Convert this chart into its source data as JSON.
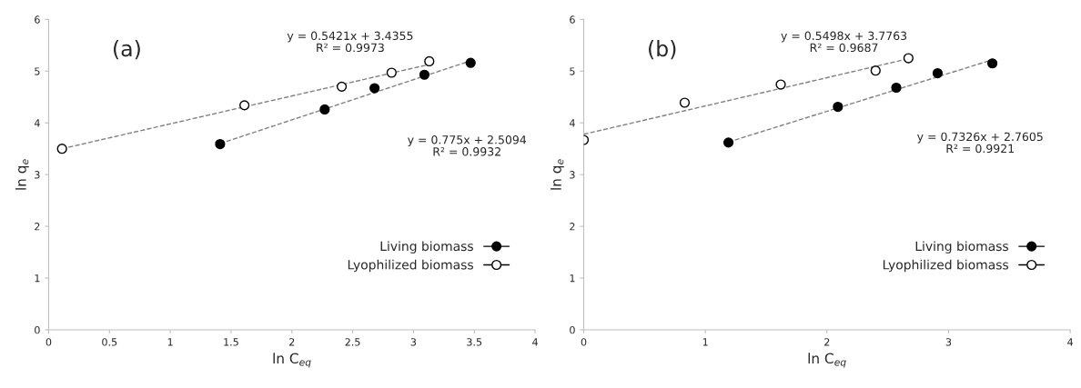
{
  "chart_data": [
    {
      "type": "scatter",
      "title": "(a)",
      "xlabel": "ln C$_{eq}$",
      "ylabel": "ln q$_{e}$",
      "xlim": [
        0,
        4
      ],
      "ylim": [
        0,
        6
      ],
      "xticks": [
        0,
        0.5,
        1,
        1.5,
        2,
        2.5,
        3,
        3.5,
        4
      ],
      "yticks": [
        0,
        1,
        2,
        3,
        4,
        5,
        6
      ],
      "grid": false,
      "legend": "bottom right",
      "marker": "circle",
      "series": [
        {
          "name": "Living biomass",
          "color": "#000000",
          "x": [
            1.41,
            2.27,
            2.68,
            3.09,
            3.47
          ],
          "values": [
            3.59,
            4.26,
            4.67,
            4.93,
            5.16
          ]
        },
        {
          "name": "Lyophilized biomass",
          "color": "#ffffff",
          "x": [
            0.11,
            1.61,
            2.41,
            2.82,
            3.13
          ],
          "values": [
            3.5,
            4.34,
            4.7,
            4.97,
            5.19
          ]
        },
        {
          "type": "line",
          "color": "#808080",
          "line_style": "dashed",
          "marker": "none",
          "x": [
            1.41,
            3.47
          ],
          "values": [
            3.6,
            5.2
          ]
        },
        {
          "type": "line",
          "color": "#808080",
          "line_style": "dashed",
          "marker": "none",
          "x": [
            0.11,
            3.13
          ],
          "values": [
            3.5,
            5.13
          ]
        }
      ],
      "annotations": [
        "y = 0.5421x + 3.4355\nR² = 0.9973",
        "y = 0.775x + 2.5094\nR² = 0.9932"
      ]
    },
    {
      "type": "scatter",
      "title": "(b)",
      "xlabel": "ln C$_{eq}$",
      "ylabel": "ln q$_{e}$",
      "xlim": [
        0,
        4
      ],
      "ylim": [
        0,
        6
      ],
      "xticks": [
        0,
        1,
        2,
        3,
        4
      ],
      "yticks": [
        0,
        1,
        2,
        3,
        4,
        5,
        6
      ],
      "grid": false,
      "legend": "bottom right",
      "marker": "circle",
      "series": [
        {
          "name": "Living biomass",
          "color": "#000000",
          "x": [
            1.19,
            2.09,
            2.57,
            2.91,
            3.36
          ],
          "values": [
            3.62,
            4.31,
            4.68,
            4.96,
            5.15
          ]
        },
        {
          "name": "Lyophilized biomass",
          "color": "#ffffff",
          "x": [
            0,
            0.83,
            1.62,
            2.4,
            2.67
          ],
          "values": [
            3.67,
            4.39,
            4.74,
            5.01,
            5.25
          ]
        },
        {
          "type": "line",
          "color": "#808080",
          "line_style": "dashed",
          "marker": "none",
          "x": [
            1.19,
            3.36
          ],
          "values": [
            3.63,
            5.22
          ]
        },
        {
          "type": "line",
          "color": "#808080",
          "line_style": "dashed",
          "marker": "none",
          "x": [
            0,
            2.67
          ],
          "values": [
            3.78,
            5.24
          ]
        }
      ],
      "annotations": [
        "y = 0.5498x + 3.7763\nR² = 0.9687",
        "y = 0.7326x + 2.7605\nR² = 0.9921"
      ]
    }
  ]
}
